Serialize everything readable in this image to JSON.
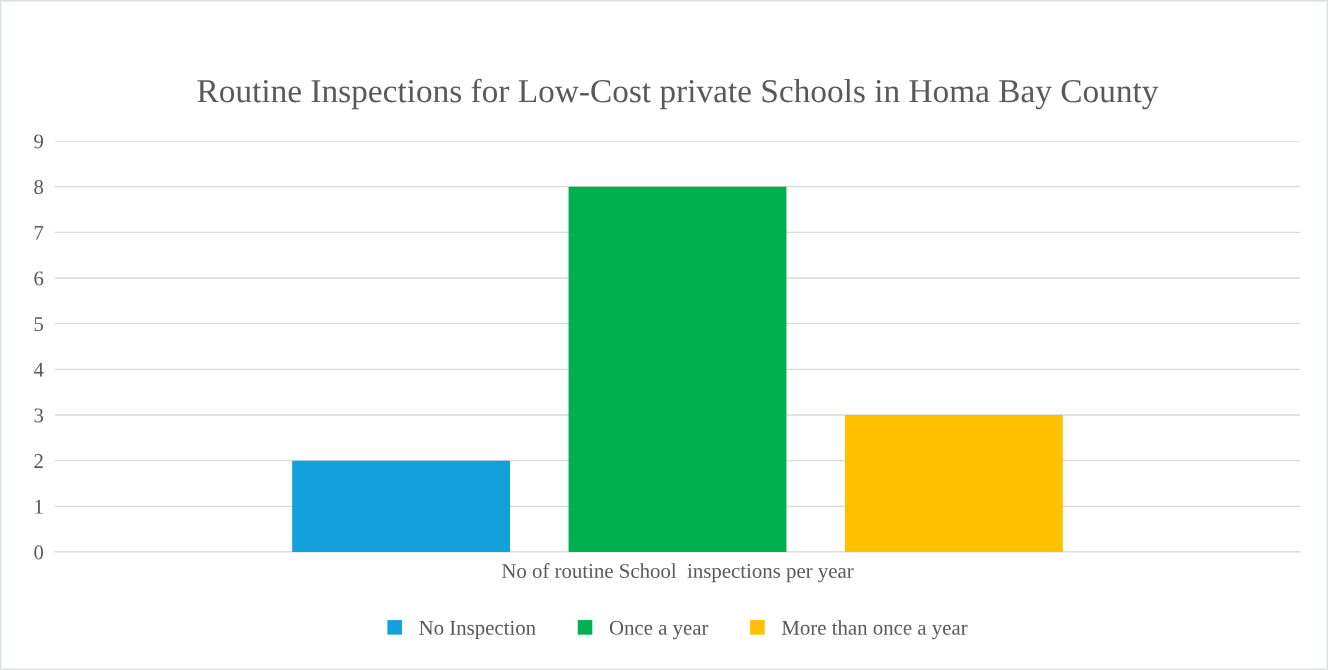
{
  "chart_data": {
    "type": "bar",
    "title": "Routine Inspections for Low-Cost private Schools in Homa Bay County",
    "categories": [
      "No of routine School  inspections per year"
    ],
    "series": [
      {
        "name": "No Inspection",
        "color": "#14a1db",
        "values": [
          2
        ]
      },
      {
        "name": "Once a year",
        "color": "#00b050",
        "values": [
          8
        ]
      },
      {
        "name": "More than once a year",
        "color": "#ffc000",
        "values": [
          3
        ]
      }
    ],
    "ylim": [
      0,
      9
    ],
    "yticks": [
      0,
      1,
      2,
      3,
      4,
      5,
      6,
      7,
      8,
      9
    ],
    "grid": "y",
    "legend": "bottom"
  }
}
